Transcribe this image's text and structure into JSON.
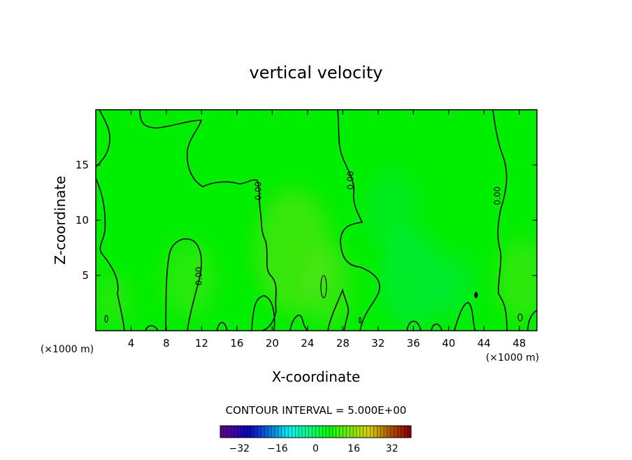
{
  "chart_data": {
    "type": "heatmap",
    "title": "vertical velocity",
    "xlabel": "X-coordinate",
    "ylabel": "Z-coordinate",
    "x_unit": "(×1000 m)",
    "z_unit": "(×1000 m)",
    "xlim": [
      0,
      50
    ],
    "ylim": [
      0,
      20
    ],
    "x_ticks": [
      4,
      8,
      12,
      16,
      20,
      24,
      28,
      32,
      36,
      40,
      44,
      48
    ],
    "y_ticks": [
      5,
      10,
      15
    ],
    "contour_interval_text": "CONTOUR INTERVAL = 5.000E+00",
    "contour_labels": [
      "0.00",
      "0.00",
      "0.00",
      "0.00"
    ],
    "colorbar": {
      "min": -40,
      "max": 40,
      "ticks": [
        -32,
        -16,
        0,
        16,
        32
      ],
      "tick_labels": [
        "−32",
        "−16",
        "0",
        "16",
        "32"
      ]
    },
    "colors": {
      "field_base": "#00ee00",
      "contour_line": "#000000"
    }
  }
}
